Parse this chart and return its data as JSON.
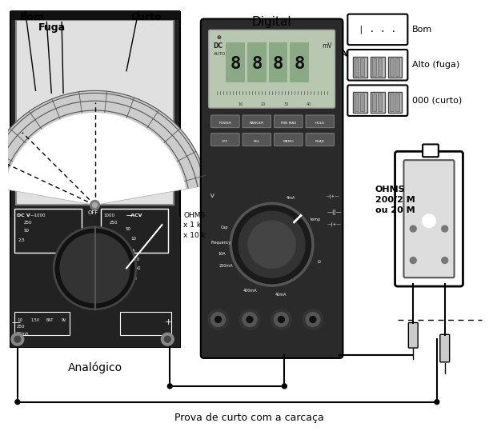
{
  "bg_color": "#ffffff",
  "labels": {
    "bom": "Bom",
    "fuga": "Fuga",
    "curto": "Curto",
    "digital": "Digital",
    "analogico": "Analógico",
    "ohms_label": "OHMS\nx 1 k\nx 10 k",
    "ohms_right": "OHMS\n200/2 M\nou 20 M",
    "bom_right": "Bom",
    "alto_fuga": "Alto (fuga)",
    "zero_curto": "000 (curto)",
    "bottom_text": "Prova de curto com a carcaça",
    "i_dots": "| . . ."
  }
}
